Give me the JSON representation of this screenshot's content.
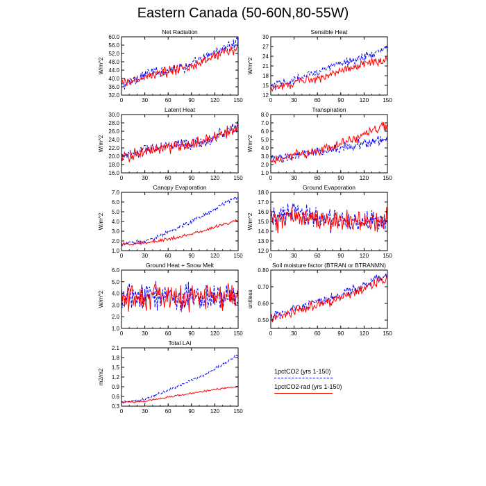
{
  "title": "Eastern Canada (50-60N,80-55W)",
  "colors": {
    "red": "#ff0000",
    "blue": "#0000ff"
  },
  "legend": [
    {
      "label": "1pctCO2 (yrs 1-150)",
      "color": "#0000ff",
      "style": "dashed"
    },
    {
      "label": "1pctCO2-rad (yrs 1-150)",
      "color": "#ff0000",
      "style": "solid"
    }
  ],
  "chart_data": [
    {
      "type": "line",
      "title": "Net Radiation",
      "ylabel": "W/m^2",
      "xlim": [
        0,
        150
      ],
      "xticks": [
        0,
        30,
        60,
        90,
        120,
        150
      ],
      "ylim": [
        32,
        60
      ],
      "yticks": [
        "32.0",
        "36.0",
        "40.0",
        "44.0",
        "48.0",
        "52.0",
        "56.0",
        "60.0"
      ],
      "series": [
        {
          "name": "1pctCO2 (yrs 1-150)",
          "color": "#0000ff",
          "style": "dashed",
          "x": [
            0,
            15,
            30,
            45,
            60,
            75,
            90,
            105,
            120,
            135,
            150
          ],
          "y": [
            36.5,
            39,
            42,
            43,
            44.5,
            45,
            46.5,
            49,
            52.5,
            55,
            57.5
          ],
          "noise": 3.2
        },
        {
          "name": "1pctCO2-rad (yrs 1-150)",
          "color": "#ff0000",
          "style": "solid",
          "x": [
            0,
            15,
            30,
            45,
            60,
            75,
            90,
            105,
            120,
            135,
            150
          ],
          "y": [
            37.5,
            38.5,
            40.5,
            42,
            43.5,
            44.5,
            45.5,
            48,
            51,
            53,
            54
          ],
          "noise": 3.0
        }
      ]
    },
    {
      "type": "line",
      "title": "Sensible Heat",
      "ylabel": "W/m^2",
      "xlim": [
        0,
        150
      ],
      "xticks": [
        0,
        30,
        60,
        90,
        120,
        150
      ],
      "ylim": [
        12,
        30
      ],
      "yticks": [
        "12",
        "15",
        "18",
        "21",
        "24",
        "27",
        "30"
      ],
      "series": [
        {
          "name": "1pctCO2 (yrs 1-150)",
          "color": "#0000ff",
          "style": "dashed",
          "x": [
            0,
            15,
            30,
            45,
            60,
            75,
            90,
            105,
            120,
            135,
            150
          ],
          "y": [
            14.5,
            15.5,
            16.5,
            18,
            19.5,
            20.5,
            21.5,
            23,
            24,
            25,
            26
          ],
          "noise": 1.8
        },
        {
          "name": "1pctCO2-rad (yrs 1-150)",
          "color": "#ff0000",
          "style": "solid",
          "x": [
            0,
            15,
            30,
            45,
            60,
            75,
            90,
            105,
            120,
            135,
            150
          ],
          "y": [
            14.5,
            15,
            15.5,
            16.5,
            17,
            18,
            19.5,
            20.5,
            22,
            22.5,
            22.5
          ],
          "noise": 1.6
        }
      ]
    },
    {
      "type": "line",
      "title": "Latent Heat",
      "ylabel": "W/m^2",
      "xlim": [
        0,
        150
      ],
      "xticks": [
        0,
        30,
        60,
        90,
        120,
        150
      ],
      "ylim": [
        16,
        30
      ],
      "yticks": [
        "16.0",
        "18.0",
        "20.0",
        "22.0",
        "24.0",
        "26.0",
        "28.0",
        "30.0"
      ],
      "series": [
        {
          "name": "1pctCO2 (yrs 1-150)",
          "color": "#0000ff",
          "style": "dashed",
          "x": [
            0,
            15,
            30,
            45,
            60,
            75,
            90,
            105,
            120,
            135,
            150
          ],
          "y": [
            20,
            20.5,
            21.5,
            22,
            22.5,
            22.5,
            23,
            23.5,
            24.5,
            26,
            27.5
          ],
          "noise": 1.8
        },
        {
          "name": "1pctCO2-rad (yrs 1-150)",
          "color": "#ff0000",
          "style": "solid",
          "x": [
            0,
            15,
            30,
            45,
            60,
            75,
            90,
            105,
            120,
            135,
            150
          ],
          "y": [
            19.5,
            20.5,
            21,
            21.5,
            22,
            22.5,
            23,
            23.5,
            24.5,
            26,
            27
          ],
          "noise": 1.8
        }
      ]
    },
    {
      "type": "line",
      "title": "Transpiration",
      "ylabel": "W/m^2",
      "xlim": [
        0,
        150
      ],
      "xticks": [
        0,
        30,
        60,
        90,
        120,
        150
      ],
      "ylim": [
        1,
        8
      ],
      "yticks": [
        "1.0",
        "2.0",
        "3.0",
        "4.0",
        "5.0",
        "6.0",
        "7.0",
        "8.0"
      ],
      "series": [
        {
          "name": "1pctCO2 (yrs 1-150)",
          "color": "#0000ff",
          "style": "dashed",
          "x": [
            0,
            15,
            30,
            45,
            60,
            75,
            90,
            105,
            120,
            135,
            150
          ],
          "y": [
            2.6,
            2.8,
            3.0,
            3.3,
            3.5,
            3.7,
            4.0,
            4.3,
            4.6,
            4.8,
            5.1
          ],
          "noise": 0.7
        },
        {
          "name": "1pctCO2-rad (yrs 1-150)",
          "color": "#ff0000",
          "style": "solid",
          "x": [
            0,
            15,
            30,
            45,
            60,
            75,
            90,
            105,
            120,
            135,
            150
          ],
          "y": [
            2.6,
            2.8,
            3.1,
            3.3,
            3.6,
            3.9,
            4.4,
            4.9,
            5.6,
            6.3,
            6.6
          ],
          "noise": 0.7
        }
      ]
    },
    {
      "type": "line",
      "title": "Canopy Evaporation",
      "ylabel": "W/m^2",
      "xlim": [
        0,
        150
      ],
      "xticks": [
        0,
        30,
        60,
        90,
        120,
        150
      ],
      "ylim": [
        1,
        7
      ],
      "yticks": [
        "1.0",
        "2.0",
        "3.0",
        "4.0",
        "5.0",
        "6.0",
        "7.0"
      ],
      "series": [
        {
          "name": "1pctCO2 (yrs 1-150)",
          "color": "#0000ff",
          "style": "dashed",
          "x": [
            0,
            15,
            30,
            45,
            60,
            75,
            90,
            105,
            120,
            135,
            150
          ],
          "y": [
            1.7,
            1.8,
            2.0,
            2.4,
            2.9,
            3.4,
            4.0,
            4.6,
            5.3,
            6.0,
            6.5
          ],
          "noise": 0.25
        },
        {
          "name": "1pctCO2-rad (yrs 1-150)",
          "color": "#ff0000",
          "style": "solid",
          "x": [
            0,
            15,
            30,
            45,
            60,
            75,
            90,
            105,
            120,
            135,
            150
          ],
          "y": [
            1.7,
            1.7,
            1.8,
            2.0,
            2.2,
            2.4,
            2.7,
            3.0,
            3.4,
            3.8,
            4.1
          ],
          "noise": 0.2
        }
      ]
    },
    {
      "type": "line",
      "title": "Ground Evaporation",
      "ylabel": "W/m^2",
      "xlim": [
        0,
        150
      ],
      "xticks": [
        0,
        30,
        60,
        90,
        120,
        150
      ],
      "ylim": [
        12,
        18
      ],
      "yticks": [
        "12.0",
        "13.0",
        "14.0",
        "15.0",
        "16.0",
        "17.0",
        "18.0"
      ],
      "series": [
        {
          "name": "1pctCO2 (yrs 1-150)",
          "color": "#0000ff",
          "style": "dashed",
          "x": [
            0,
            15,
            30,
            45,
            60,
            75,
            90,
            105,
            120,
            135,
            150
          ],
          "y": [
            15.2,
            15.4,
            16.2,
            15.6,
            15.2,
            15.1,
            15.0,
            15.0,
            15.0,
            15.0,
            15.0
          ],
          "noise": 1.4
        },
        {
          "name": "1pctCO2-rad (yrs 1-150)",
          "color": "#ff0000",
          "style": "solid",
          "x": [
            0,
            15,
            30,
            45,
            60,
            75,
            90,
            105,
            120,
            135,
            150
          ],
          "y": [
            15.0,
            15.2,
            15.4,
            15.4,
            15.1,
            14.9,
            15.0,
            15.0,
            15.0,
            15.2,
            15.4
          ],
          "noise": 1.4
        }
      ]
    },
    {
      "type": "line",
      "title": "Ground Heat + Snow Melt",
      "ylabel": "W/m^2",
      "xlim": [
        0,
        150
      ],
      "xticks": [
        0,
        30,
        60,
        90,
        120,
        150
      ],
      "ylim": [
        1,
        6
      ],
      "yticks": [
        "1.0",
        "2.0",
        "3.0",
        "4.0",
        "5.0",
        "6.0"
      ],
      "series": [
        {
          "name": "1pctCO2 (yrs 1-150)",
          "color": "#0000ff",
          "style": "dashed",
          "x": [
            0,
            15,
            30,
            45,
            60,
            75,
            90,
            105,
            120,
            135,
            150
          ],
          "y": [
            3.8,
            3.8,
            3.8,
            3.8,
            3.8,
            3.7,
            3.7,
            3.7,
            3.7,
            3.6,
            3.5
          ],
          "noise": 1.4
        },
        {
          "name": "1pctCO2-rad (yrs 1-150)",
          "color": "#ff0000",
          "style": "solid",
          "x": [
            0,
            15,
            30,
            45,
            60,
            75,
            90,
            105,
            120,
            135,
            150
          ],
          "y": [
            3.8,
            3.8,
            3.8,
            3.8,
            3.8,
            3.7,
            3.7,
            3.7,
            3.6,
            3.5,
            3.4
          ],
          "noise": 1.4
        }
      ]
    },
    {
      "type": "line",
      "title": "Soil moisture factor (BTRAN or BTRANMN)",
      "ylabel": "unitless",
      "xlim": [
        0,
        150
      ],
      "xticks": [
        0,
        30,
        60,
        90,
        120,
        150
      ],
      "ylim": [
        0.45,
        0.8
      ],
      "yticks": [
        "0.50",
        "0.60",
        "0.70",
        "0.80"
      ],
      "series": [
        {
          "name": "1pctCO2 (yrs 1-150)",
          "color": "#0000ff",
          "style": "dashed",
          "x": [
            0,
            15,
            30,
            45,
            60,
            75,
            90,
            105,
            120,
            135,
            150
          ],
          "y": [
            0.52,
            0.54,
            0.57,
            0.59,
            0.61,
            0.63,
            0.65,
            0.68,
            0.71,
            0.74,
            0.77
          ],
          "noise": 0.035
        },
        {
          "name": "1pctCO2-rad (yrs 1-150)",
          "color": "#ff0000",
          "style": "solid",
          "x": [
            0,
            15,
            30,
            45,
            60,
            75,
            90,
            105,
            120,
            135,
            150
          ],
          "y": [
            0.51,
            0.53,
            0.55,
            0.57,
            0.59,
            0.61,
            0.63,
            0.66,
            0.69,
            0.72,
            0.75
          ],
          "noise": 0.035
        }
      ]
    },
    {
      "type": "line",
      "title": "Total LAI",
      "ylabel": "m2/m2",
      "xlim": [
        0,
        150
      ],
      "xticks": [
        0,
        30,
        60,
        90,
        120,
        150
      ],
      "ylim": [
        0.3,
        2.1
      ],
      "yticks": [
        "0.3",
        "0.6",
        "0.9",
        "1.2",
        "1.5",
        "1.8",
        "2.1"
      ],
      "series": [
        {
          "name": "1pctCO2 (yrs 1-150)",
          "color": "#0000ff",
          "style": "dashed",
          "x": [
            0,
            15,
            30,
            45,
            60,
            75,
            90,
            105,
            120,
            135,
            150
          ],
          "y": [
            0.42,
            0.45,
            0.52,
            0.65,
            0.8,
            0.95,
            1.1,
            1.25,
            1.45,
            1.65,
            1.9
          ],
          "noise": 0.05
        },
        {
          "name": "1pctCO2-rad (yrs 1-150)",
          "color": "#ff0000",
          "style": "solid",
          "x": [
            0,
            15,
            30,
            45,
            60,
            75,
            90,
            105,
            120,
            135,
            150
          ],
          "y": [
            0.42,
            0.43,
            0.45,
            0.52,
            0.58,
            0.64,
            0.7,
            0.76,
            0.82,
            0.86,
            0.9
          ],
          "noise": 0.03
        }
      ]
    }
  ]
}
